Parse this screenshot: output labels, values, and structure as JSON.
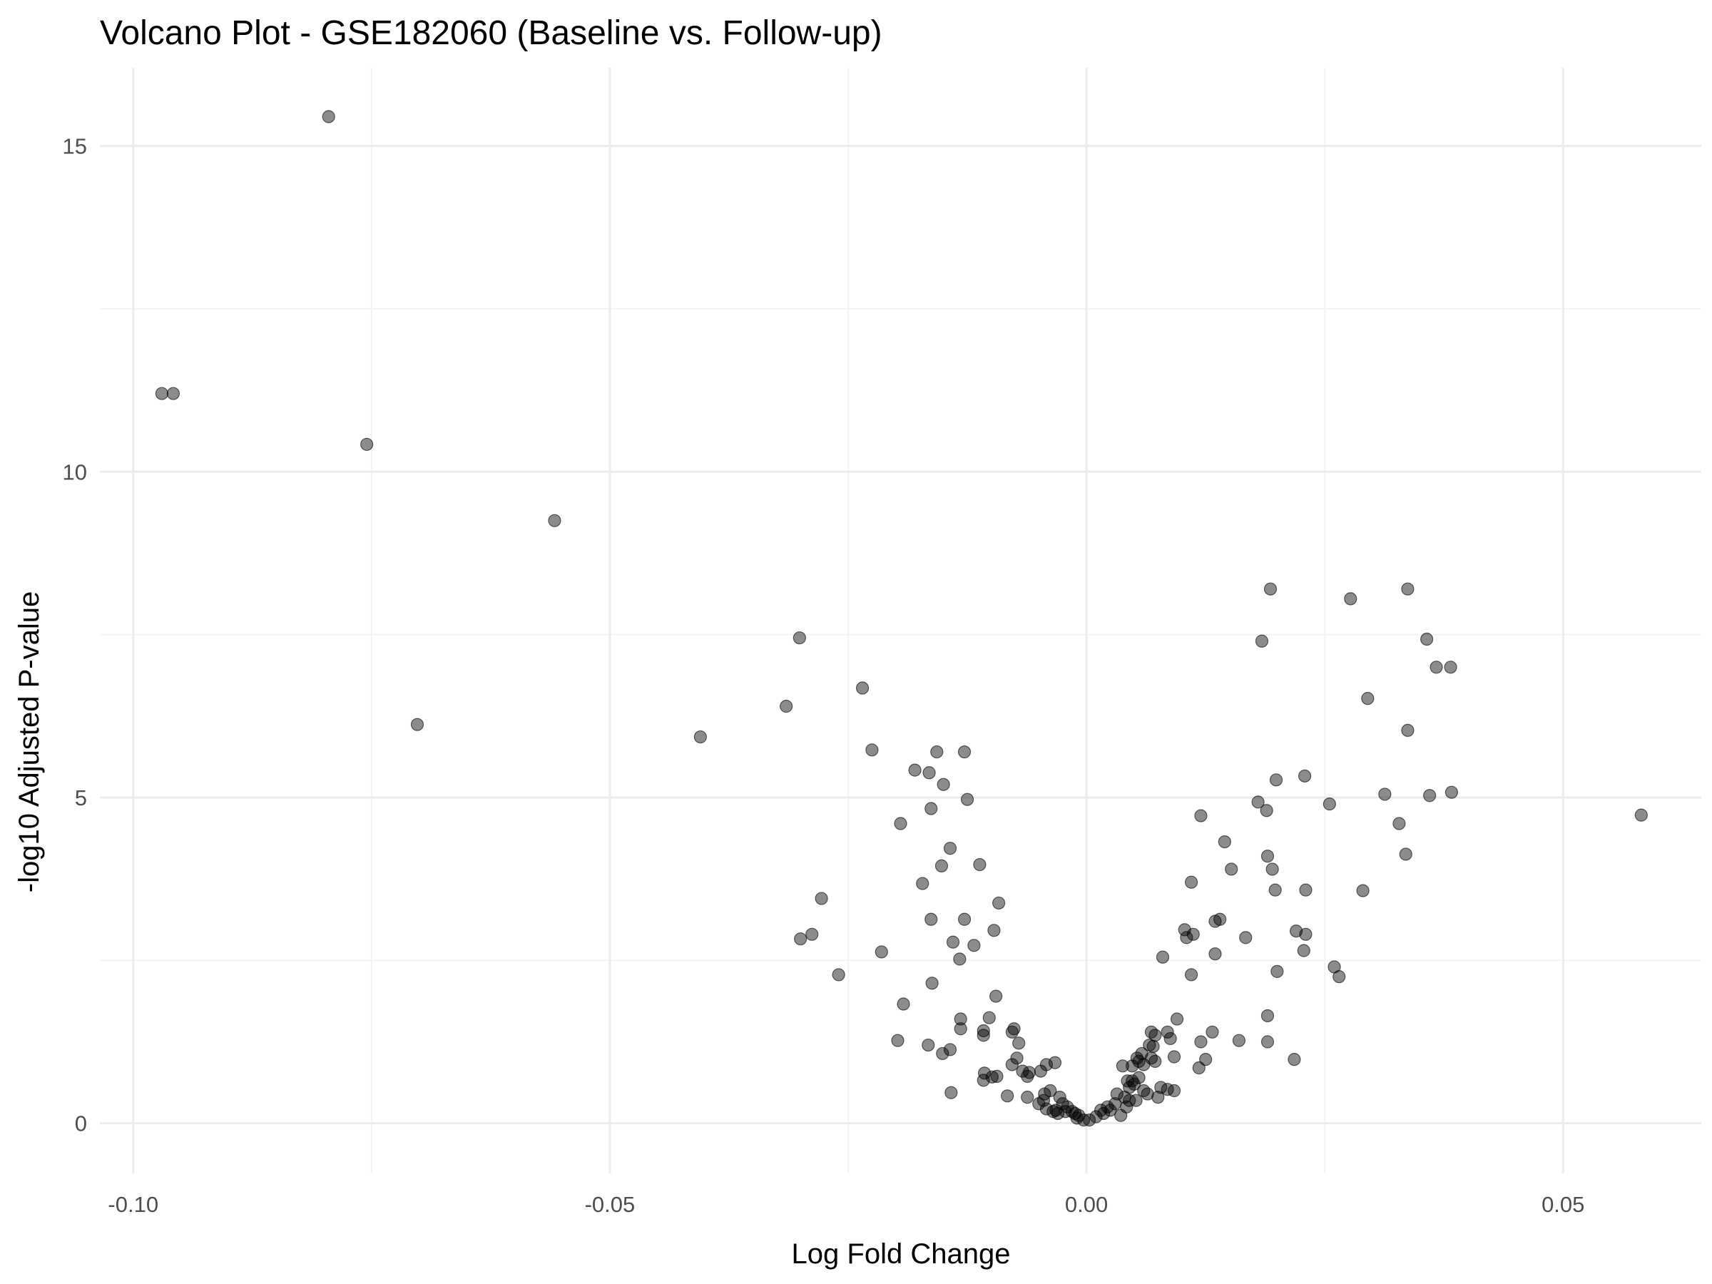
{
  "chart_data": {
    "type": "scatter",
    "title": "Volcano Plot - GSE182060 (Baseline vs. Follow-up)",
    "xlabel": "Log Fold Change",
    "ylabel": "-log10 Adjusted P-value",
    "xlim": [
      -0.1035,
      0.0645
    ],
    "ylim": [
      -0.77,
      16.2
    ],
    "x_ticks": [
      -0.1,
      -0.05,
      0.0,
      0.05
    ],
    "x_tick_labels": [
      "-0.10",
      "-0.05",
      "0.00",
      "0.05"
    ],
    "y_ticks": [
      0,
      5,
      10,
      15
    ],
    "y_tick_labels": [
      "0",
      "5",
      "10",
      "15"
    ],
    "grid": true,
    "legend": "none",
    "point_color": "#000000",
    "points": [
      [
        -0.0795,
        15.45
      ],
      [
        -0.097,
        11.2
      ],
      [
        -0.0958,
        11.2
      ],
      [
        -0.0755,
        10.42
      ],
      [
        -0.0558,
        9.25
      ],
      [
        -0.0702,
        6.12
      ],
      [
        -0.0301,
        7.45
      ],
      [
        -0.0235,
        6.68
      ],
      [
        -0.0315,
        6.4
      ],
      [
        -0.0405,
        5.93
      ],
      [
        -0.0225,
        5.73
      ],
      [
        -0.0157,
        5.7
      ],
      [
        -0.0128,
        5.7
      ],
      [
        -0.018,
        5.42
      ],
      [
        -0.0165,
        5.38
      ],
      [
        -0.015,
        5.2
      ],
      [
        -0.0125,
        4.97
      ],
      [
        -0.0163,
        4.83
      ],
      [
        -0.0195,
        4.6
      ],
      [
        -0.0143,
        4.22
      ],
      [
        -0.0152,
        3.95
      ],
      [
        -0.0112,
        3.97
      ],
      [
        -0.0172,
        3.68
      ],
      [
        -0.0278,
        3.45
      ],
      [
        -0.0092,
        3.38
      ],
      [
        -0.0163,
        3.13
      ],
      [
        -0.0128,
        3.13
      ],
      [
        -0.0097,
        2.96
      ],
      [
        -0.0288,
        2.9
      ],
      [
        -0.03,
        2.83
      ],
      [
        -0.014,
        2.78
      ],
      [
        -0.0118,
        2.73
      ],
      [
        -0.0215,
        2.63
      ],
      [
        -0.0133,
        2.52
      ],
      [
        -0.026,
        2.28
      ],
      [
        -0.0162,
        2.15
      ],
      [
        -0.0095,
        1.95
      ],
      [
        -0.0192,
        1.83
      ],
      [
        -0.0132,
        1.6
      ],
      [
        -0.0102,
        1.62
      ],
      [
        -0.0076,
        1.45
      ],
      [
        -0.0078,
        1.4
      ],
      [
        -0.0108,
        1.42
      ],
      [
        -0.0108,
        1.35
      ],
      [
        -0.0132,
        1.45
      ],
      [
        -0.0198,
        1.27
      ],
      [
        -0.0166,
        1.2
      ],
      [
        -0.0071,
        1.23
      ],
      [
        -0.0143,
        1.13
      ],
      [
        -0.0151,
        1.07
      ],
      [
        -0.0107,
        0.77
      ],
      [
        -0.0099,
        0.71
      ],
      [
        -0.0094,
        0.72
      ],
      [
        -0.0108,
        0.66
      ],
      [
        -0.0078,
        0.9
      ],
      [
        -0.0073,
        1.0
      ],
      [
        -0.0067,
        0.8
      ],
      [
        -0.006,
        0.78
      ],
      [
        -0.0048,
        0.8
      ],
      [
        -0.0062,
        0.72
      ],
      [
        -0.0042,
        0.9
      ],
      [
        -0.0033,
        0.93
      ],
      [
        -0.0142,
        0.47
      ],
      [
        -0.0083,
        0.42
      ],
      [
        -0.0062,
        0.4
      ],
      [
        -0.0044,
        0.45
      ],
      [
        -0.0038,
        0.5
      ],
      [
        -0.0028,
        0.4
      ],
      [
        -0.0025,
        0.3
      ],
      [
        -0.0032,
        0.2
      ],
      [
        -0.002,
        0.25
      ],
      [
        -0.0015,
        0.18
      ],
      [
        -0.0008,
        0.12
      ],
      [
        -0.0003,
        0.05
      ],
      [
        -0.001,
        0.08
      ],
      [
        -0.0045,
        0.35
      ],
      [
        -0.005,
        0.3
      ],
      [
        -0.0042,
        0.22
      ],
      [
        -0.003,
        0.15
      ],
      [
        -0.0035,
        0.18
      ],
      [
        -0.0022,
        0.18
      ],
      [
        -0.0012,
        0.15
      ],
      [
        0.0003,
        0.05
      ],
      [
        0.001,
        0.1
      ],
      [
        0.0018,
        0.15
      ],
      [
        0.0025,
        0.2
      ],
      [
        0.003,
        0.3
      ],
      [
        0.0032,
        0.45
      ],
      [
        0.004,
        0.4
      ],
      [
        0.0045,
        0.55
      ],
      [
        0.005,
        0.6
      ],
      [
        0.0055,
        0.7
      ],
      [
        0.0042,
        0.25
      ],
      [
        0.0036,
        0.12
      ],
      [
        0.0022,
        0.25
      ],
      [
        0.0015,
        0.2
      ],
      [
        0.0048,
        0.88
      ],
      [
        0.0055,
        0.95
      ],
      [
        0.006,
        0.9
      ],
      [
        0.0068,
        1.0
      ],
      [
        0.0058,
        1.07
      ],
      [
        0.0072,
        0.95
      ],
      [
        0.0066,
        1.2
      ],
      [
        0.007,
        1.18
      ],
      [
        0.0078,
        0.55
      ],
      [
        0.0085,
        0.52
      ],
      [
        0.0092,
        0.5
      ],
      [
        0.0064,
        0.45
      ],
      [
        0.0052,
        0.35
      ],
      [
        0.0045,
        0.35
      ],
      [
        0.0075,
        0.4
      ],
      [
        0.006,
        0.5
      ],
      [
        0.0038,
        0.88
      ],
      [
        0.0053,
        1.0
      ],
      [
        0.0043,
        0.65
      ],
      [
        0.0048,
        0.65
      ],
      [
        0.0068,
        1.4
      ],
      [
        0.0072,
        1.35
      ],
      [
        0.0085,
        1.4
      ],
      [
        0.0088,
        1.3
      ],
      [
        0.0095,
        1.6
      ],
      [
        0.0092,
        1.02
      ],
      [
        0.0118,
        0.85
      ],
      [
        0.0125,
        0.98
      ],
      [
        0.012,
        1.25
      ],
      [
        0.0132,
        1.4
      ],
      [
        0.016,
        1.27
      ],
      [
        0.019,
        1.25
      ],
      [
        0.019,
        1.65
      ],
      [
        0.0218,
        0.98
      ],
      [
        0.0103,
        2.97
      ],
      [
        0.0105,
        2.85
      ],
      [
        0.0112,
        2.9
      ],
      [
        0.011,
        2.28
      ],
      [
        0.008,
        2.55
      ],
      [
        0.0135,
        2.6
      ],
      [
        0.0135,
        3.1
      ],
      [
        0.014,
        3.13
      ],
      [
        0.0167,
        2.85
      ],
      [
        0.022,
        2.95
      ],
      [
        0.023,
        2.9
      ],
      [
        0.0228,
        2.65
      ],
      [
        0.02,
        2.33
      ],
      [
        0.026,
        2.4
      ],
      [
        0.0265,
        2.25
      ],
      [
        0.011,
        3.7
      ],
      [
        0.0152,
        3.9
      ],
      [
        0.0145,
        4.32
      ],
      [
        0.012,
        4.72
      ],
      [
        0.019,
        4.1
      ],
      [
        0.0195,
        3.9
      ],
      [
        0.0198,
        3.58
      ],
      [
        0.023,
        3.58
      ],
      [
        0.029,
        3.57
      ],
      [
        0.018,
        4.93
      ],
      [
        0.0189,
        4.8
      ],
      [
        0.0199,
        5.27
      ],
      [
        0.0229,
        5.33
      ],
      [
        0.0255,
        4.9
      ],
      [
        0.0313,
        5.05
      ],
      [
        0.0328,
        4.6
      ],
      [
        0.0335,
        4.13
      ],
      [
        0.036,
        5.03
      ],
      [
        0.0383,
        5.08
      ],
      [
        0.0582,
        4.73
      ],
      [
        0.0295,
        6.52
      ],
      [
        0.0337,
        6.03
      ],
      [
        0.0357,
        7.43
      ],
      [
        0.0367,
        7.0
      ],
      [
        0.0382,
        7.0
      ],
      [
        0.0184,
        7.4
      ],
      [
        0.0193,
        8.2
      ],
      [
        0.0277,
        8.05
      ],
      [
        0.0337,
        8.2
      ]
    ]
  }
}
